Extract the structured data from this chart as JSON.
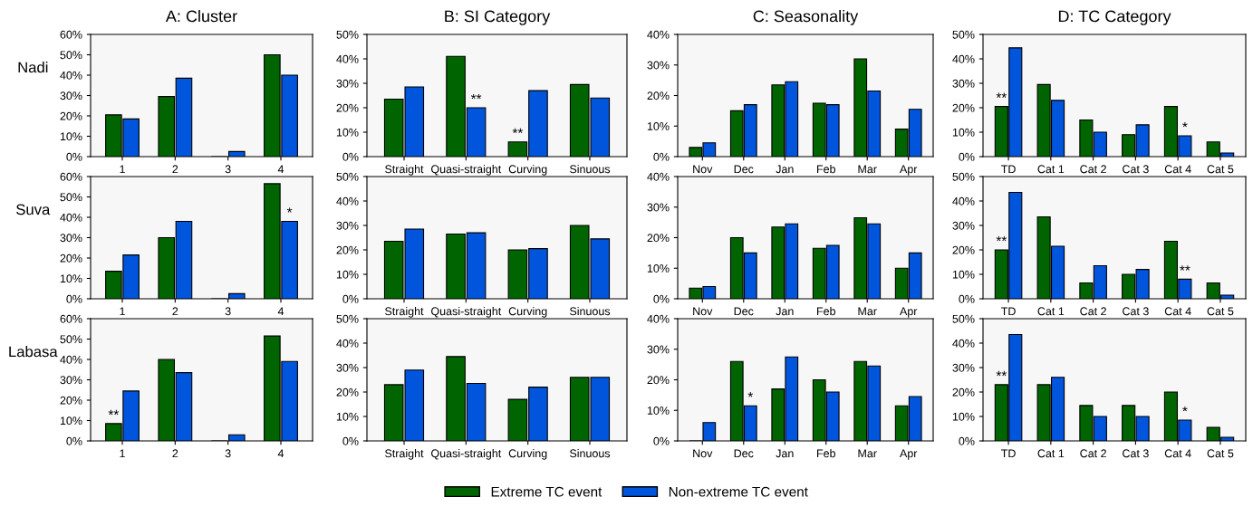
{
  "chart_data": [
    {
      "type": "bar",
      "title": "A: Cluster",
      "ylabel": "Nadi",
      "categories": [
        "1",
        "2",
        "3",
        "4"
      ],
      "series": [
        {
          "color": "#006400",
          "values": [
            20.5,
            29.5,
            0,
            50
          ]
        },
        {
          "color": "#0055dd",
          "values": [
            18.5,
            38.5,
            2.5,
            40
          ]
        }
      ],
      "ylim": [
        0,
        60
      ],
      "yticks": [
        {
          "value": 0,
          "label": "0%"
        },
        {
          "value": 10,
          "label": "10%"
        },
        {
          "value": 20,
          "label": "20%"
        },
        {
          "value": 30,
          "label": "30%"
        },
        {
          "value": 40,
          "label": "40%"
        },
        {
          "value": 50,
          "label": "50%"
        },
        {
          "value": 60,
          "label": "60%"
        }
      ]
    },
    {
      "type": "bar",
      "title": "B: SI Category",
      "categories": [
        "Straight",
        "Quasi-straight",
        "Curving",
        "Sinuous"
      ],
      "series": [
        {
          "color": "#006400",
          "values": [
            23.5,
            41,
            6,
            29.5
          ]
        },
        {
          "color": "#0055dd",
          "values": [
            28.5,
            20,
            27,
            24
          ]
        }
      ],
      "ylim": [
        0,
        50
      ],
      "yticks": [
        {
          "value": 0,
          "label": "0%"
        },
        {
          "value": 10,
          "label": "10%"
        },
        {
          "value": 20,
          "label": "20%"
        },
        {
          "value": 30,
          "label": "30%"
        },
        {
          "value": 40,
          "label": "40%"
        },
        {
          "value": 50,
          "label": "50%"
        }
      ],
      "annotations": [
        {
          "text": "**",
          "x": "Quasi-straight",
          "y": 20
        },
        {
          "text": "**",
          "x": "Curving",
          "y": 6
        }
      ]
    },
    {
      "type": "bar",
      "title": "C: Seasonality",
      "categories": [
        "Nov",
        "Dec",
        "Jan",
        "Feb",
        "Mar",
        "Apr"
      ],
      "series": [
        {
          "color": "#006400",
          "values": [
            3,
            15,
            23.5,
            17.5,
            32,
            9
          ]
        },
        {
          "color": "#0055dd",
          "values": [
            4.5,
            17,
            24.5,
            17,
            21.5,
            15.5
          ]
        }
      ],
      "ylim": [
        0,
        40
      ],
      "yticks": [
        {
          "value": 0,
          "label": "0%"
        },
        {
          "value": 10,
          "label": "10%"
        },
        {
          "value": 20,
          "label": "20%"
        },
        {
          "value": 30,
          "label": "30%"
        },
        {
          "value": 40,
          "label": "40%"
        }
      ]
    },
    {
      "type": "bar",
      "title": "D: TC Category",
      "categories": [
        "TD",
        "Cat 1",
        "Cat 2",
        "Cat 3",
        "Cat 4",
        "Cat 5"
      ],
      "series": [
        {
          "color": "#006400",
          "values": [
            20.5,
            29.5,
            15,
            9,
            20.5,
            6
          ]
        },
        {
          "color": "#0055dd",
          "values": [
            44.5,
            23,
            10,
            13,
            8.5,
            1.5
          ]
        }
      ],
      "ylim": [
        0,
        50
      ],
      "yticks": [
        {
          "value": 0,
          "label": "0%"
        },
        {
          "value": 10,
          "label": "10%"
        },
        {
          "value": 20,
          "label": "20%"
        },
        {
          "value": 30,
          "label": "30%"
        },
        {
          "value": 40,
          "label": "40%"
        },
        {
          "value": 50,
          "label": "50%"
        }
      ],
      "annotations": [
        {
          "text": "**",
          "x": "TD",
          "y": 20.5
        },
        {
          "text": "*",
          "x": "Cat 4",
          "y": 8.5
        }
      ]
    },
    {
      "type": "bar",
      "ylabel": "Suva",
      "categories": [
        "1",
        "2",
        "3",
        "4"
      ],
      "series": [
        {
          "color": "#006400",
          "values": [
            13.5,
            30,
            0,
            56.5
          ]
        },
        {
          "color": "#0055dd",
          "values": [
            21.5,
            38,
            2.5,
            38
          ]
        }
      ],
      "ylim": [
        0,
        60
      ],
      "yticks": [
        {
          "value": 0,
          "label": "0%"
        },
        {
          "value": 10,
          "label": "10%"
        },
        {
          "value": 20,
          "label": "20%"
        },
        {
          "value": 30,
          "label": "30%"
        },
        {
          "value": 40,
          "label": "40%"
        },
        {
          "value": 50,
          "label": "50%"
        },
        {
          "value": 60,
          "label": "60%"
        }
      ],
      "annotations": [
        {
          "text": "*",
          "x": "4",
          "y": 38
        }
      ]
    },
    {
      "type": "bar",
      "categories": [
        "Straight",
        "Quasi-straight",
        "Curving",
        "Sinuous"
      ],
      "series": [
        {
          "color": "#006400",
          "values": [
            23.5,
            26.5,
            20,
            30
          ]
        },
        {
          "color": "#0055dd",
          "values": [
            28.5,
            27,
            20.5,
            24.5
          ]
        }
      ],
      "ylim": [
        0,
        50
      ],
      "yticks": [
        {
          "value": 0,
          "label": "0%"
        },
        {
          "value": 10,
          "label": "10%"
        },
        {
          "value": 20,
          "label": "20%"
        },
        {
          "value": 30,
          "label": "30%"
        },
        {
          "value": 40,
          "label": "40%"
        },
        {
          "value": 50,
          "label": "50%"
        }
      ]
    },
    {
      "type": "bar",
      "categories": [
        "Nov",
        "Dec",
        "Jan",
        "Feb",
        "Mar",
        "Apr"
      ],
      "series": [
        {
          "color": "#006400",
          "values": [
            3.5,
            20,
            23.5,
            16.5,
            26.5,
            10
          ]
        },
        {
          "color": "#0055dd",
          "values": [
            4,
            15,
            24.5,
            17.5,
            24.5,
            15
          ]
        }
      ],
      "ylim": [
        0,
        40
      ],
      "yticks": [
        {
          "value": 0,
          "label": "0%"
        },
        {
          "value": 10,
          "label": "10%"
        },
        {
          "value": 20,
          "label": "20%"
        },
        {
          "value": 30,
          "label": "30%"
        },
        {
          "value": 40,
          "label": "40%"
        }
      ]
    },
    {
      "type": "bar",
      "categories": [
        "TD",
        "Cat 1",
        "Cat 2",
        "Cat 3",
        "Cat 4",
        "Cat 5"
      ],
      "series": [
        {
          "color": "#006400",
          "values": [
            20,
            33.5,
            6.5,
            10,
            23.5,
            6.5
          ]
        },
        {
          "color": "#0055dd",
          "values": [
            43.5,
            21.5,
            13.5,
            12,
            8,
            1.5
          ]
        }
      ],
      "ylim": [
        0,
        50
      ],
      "yticks": [
        {
          "value": 0,
          "label": "0%"
        },
        {
          "value": 10,
          "label": "10%"
        },
        {
          "value": 20,
          "label": "20%"
        },
        {
          "value": 30,
          "label": "30%"
        },
        {
          "value": 40,
          "label": "40%"
        },
        {
          "value": 50,
          "label": "50%"
        }
      ],
      "annotations": [
        {
          "text": "**",
          "x": "TD",
          "y": 20
        },
        {
          "text": "**",
          "x": "Cat 4",
          "y": 8
        }
      ]
    },
    {
      "type": "bar",
      "ylabel": "Labasa",
      "categories": [
        "1",
        "2",
        "3",
        "4"
      ],
      "series": [
        {
          "color": "#006400",
          "values": [
            8.5,
            40,
            0,
            51.5
          ]
        },
        {
          "color": "#0055dd",
          "values": [
            24.5,
            33.5,
            3,
            39
          ]
        }
      ],
      "ylim": [
        0,
        60
      ],
      "yticks": [
        {
          "value": 0,
          "label": "0%"
        },
        {
          "value": 10,
          "label": "10%"
        },
        {
          "value": 20,
          "label": "20%"
        },
        {
          "value": 30,
          "label": "30%"
        },
        {
          "value": 40,
          "label": "40%"
        },
        {
          "value": 50,
          "label": "50%"
        },
        {
          "value": 60,
          "label": "60%"
        }
      ],
      "annotations": [
        {
          "text": "**",
          "x": "1",
          "y": 8.5
        }
      ]
    },
    {
      "type": "bar",
      "categories": [
        "Straight",
        "Quasi-straight",
        "Curving",
        "Sinuous"
      ],
      "legend": "bottom",
      "series": [
        {
          "name": "Extreme TC event",
          "color": "#006400",
          "values": [
            23,
            34.5,
            17,
            26
          ]
        },
        {
          "name": "Non-extreme TC event",
          "color": "#0055dd",
          "values": [
            29,
            23.5,
            22,
            26
          ]
        }
      ],
      "ylim": [
        0,
        50
      ],
      "yticks": [
        {
          "value": 0,
          "label": "0%"
        },
        {
          "value": 10,
          "label": "10%"
        },
        {
          "value": 20,
          "label": "20%"
        },
        {
          "value": 30,
          "label": "30%"
        },
        {
          "value": 40,
          "label": "40%"
        },
        {
          "value": 50,
          "label": "50%"
        }
      ]
    },
    {
      "type": "bar",
      "categories": [
        "Nov",
        "Dec",
        "Jan",
        "Feb",
        "Mar",
        "Apr"
      ],
      "series": [
        {
          "color": "#006400",
          "values": [
            0,
            26,
            17,
            20,
            26,
            11.5
          ]
        },
        {
          "color": "#0055dd",
          "values": [
            6,
            11.5,
            27.5,
            16,
            24.5,
            14.5
          ]
        }
      ],
      "ylim": [
        0,
        40
      ],
      "yticks": [
        {
          "value": 0,
          "label": "0%"
        },
        {
          "value": 10,
          "label": "10%"
        },
        {
          "value": 20,
          "label": "20%"
        },
        {
          "value": 30,
          "label": "30%"
        },
        {
          "value": 40,
          "label": "40%"
        }
      ],
      "annotations": [
        {
          "text": "*",
          "x": "Dec",
          "y": 11.5
        }
      ]
    },
    {
      "type": "bar",
      "categories": [
        "TD",
        "Cat 1",
        "Cat 2",
        "Cat 3",
        "Cat 4",
        "Cat 5"
      ],
      "series": [
        {
          "color": "#006400",
          "values": [
            23,
            23,
            14.5,
            14.5,
            20,
            5.5
          ]
        },
        {
          "color": "#0055dd",
          "values": [
            43.5,
            26,
            10,
            10,
            8.5,
            1.5
          ]
        }
      ],
      "ylim": [
        0,
        50
      ],
      "yticks": [
        {
          "value": 0,
          "label": "0%"
        },
        {
          "value": 10,
          "label": "10%"
        },
        {
          "value": 20,
          "label": "20%"
        },
        {
          "value": 30,
          "label": "30%"
        },
        {
          "value": 40,
          "label": "40%"
        },
        {
          "value": 50,
          "label": "50%"
        }
      ],
      "annotations": [
        {
          "text": "**",
          "x": "TD",
          "y": 23
        },
        {
          "text": "*",
          "x": "Cat 4",
          "y": 8.5
        }
      ]
    }
  ]
}
